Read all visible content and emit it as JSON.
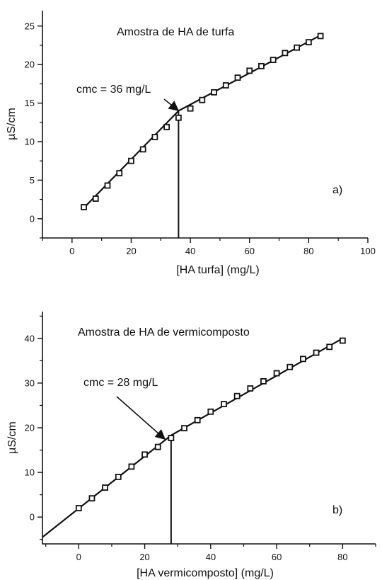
{
  "colors": {
    "ink": "#111111",
    "background": "#ffffff"
  },
  "chart_data": [
    {
      "type": "scatter",
      "panel_label": "a)",
      "title": "Amostra de HA de turfa",
      "xlabel": "[HA turfa] (mg/L)",
      "ylabel": "µS/cm",
      "xlim": [
        -10,
        100
      ],
      "ylim": [
        -2.5,
        27
      ],
      "xticks": [
        0,
        20,
        40,
        60,
        80,
        100
      ],
      "yticks": [
        0,
        5,
        10,
        15,
        20,
        25
      ],
      "marker": "open-square",
      "series": [
        {
          "x": [
            4,
            8,
            12,
            16,
            20,
            24,
            28,
            32,
            36,
            40,
            44,
            48,
            52,
            56,
            60,
            64,
            68,
            72,
            76,
            80,
            84
          ],
          "y": [
            1.5,
            2.6,
            4.3,
            5.9,
            7.5,
            9.0,
            10.6,
            11.9,
            13.1,
            14.3,
            15.4,
            16.4,
            17.3,
            18.3,
            19.2,
            19.8,
            20.6,
            21.5,
            22.2,
            22.9,
            23.7
          ]
        }
      ],
      "fit_lines": [
        {
          "x": [
            4,
            36
          ],
          "y": [
            1.4,
            14.0
          ]
        },
        {
          "x": [
            36,
            84
          ],
          "y": [
            14.0,
            23.8
          ]
        }
      ],
      "cmc_line_x": 36,
      "annotation": {
        "text": "cmc = 36 mg/L",
        "x": 36,
        "y": 14.0
      }
    },
    {
      "type": "scatter",
      "panel_label": "b)",
      "title": "Amostra de HA de vermicomposto",
      "xlabel": "[HA  vermicomposto] (mg/L)",
      "ylabel": "µS/cm",
      "xlim": [
        -11,
        90
      ],
      "ylim": [
        -6,
        46
      ],
      "xticks": [
        0,
        20,
        40,
        60,
        80
      ],
      "yticks": [
        0,
        10,
        20,
        30,
        40
      ],
      "marker": "open-square",
      "series": [
        {
          "x": [
            0,
            4,
            8,
            12,
            16,
            20,
            24,
            28,
            32,
            36,
            40,
            44,
            48,
            52,
            56,
            60,
            64,
            68,
            72,
            76,
            80
          ],
          "y": [
            2.0,
            4.2,
            6.6,
            9.0,
            11.3,
            14.0,
            15.7,
            17.7,
            19.9,
            21.7,
            23.6,
            25.3,
            27.1,
            28.8,
            30.4,
            32.2,
            33.6,
            35.4,
            36.8,
            38.1,
            39.5
          ]
        }
      ],
      "fit_lines": [
        {
          "x": [
            -11,
            28
          ],
          "y": [
            -4.5,
            18.3
          ]
        },
        {
          "x": [
            28,
            80
          ],
          "y": [
            18.3,
            40.0
          ]
        }
      ],
      "cmc_line_x": 28,
      "annotation": {
        "text": "cmc = 28 mg/L",
        "x": 28,
        "y": 18.3
      }
    }
  ]
}
